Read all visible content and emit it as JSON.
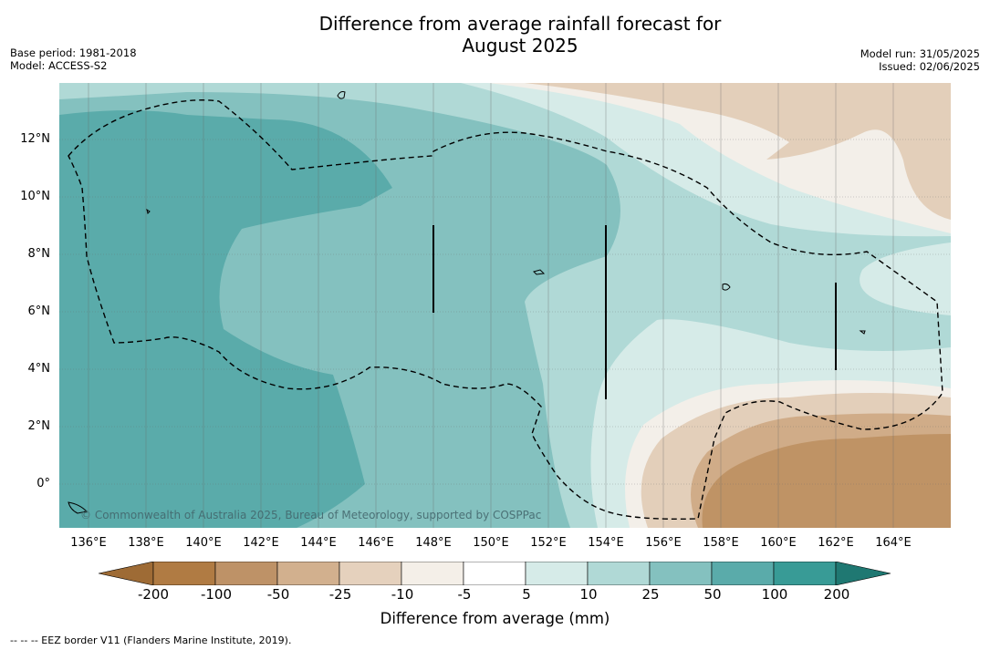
{
  "title": {
    "line1": "Difference from average rainfall forecast for",
    "line2": "August 2025"
  },
  "meta_left": {
    "base_period": "Base period: 1981-2018",
    "model": "Model: ACCESS-S2"
  },
  "meta_right": {
    "model_run": "Model run: 31/05/2025",
    "issued": "Issued: 02/06/2025"
  },
  "map": {
    "lat_labels": [
      "12°N",
      "10°N",
      "8°N",
      "6°N",
      "4°N",
      "2°N",
      "0°"
    ],
    "lon_labels": [
      "136°E",
      "138°E",
      "140°E",
      "142°E",
      "144°E",
      "146°E",
      "148°E",
      "150°E",
      "152°E",
      "154°E",
      "156°E",
      "158°E",
      "160°E",
      "162°E",
      "164°E"
    ],
    "copyright": "© Commonwealth of Australia 2025, Bureau of Meteorology, supported by COSPPac",
    "colors": {
      "water_dark": "#5aabaa",
      "water_mid": "#84c1bf",
      "water_light": "#b0d9d6",
      "water_pale": "#d6ebe8",
      "dry_pale": "#f3efe9",
      "dry_light": "#e3cfba",
      "dry_mid": "#d0ac88",
      "dry_dark": "#bf9365"
    }
  },
  "colorbar": {
    "labels": [
      "-200",
      "-100",
      "-50",
      "-25",
      "-10",
      "-5",
      "5",
      "10",
      "25",
      "50",
      "100",
      "200"
    ],
    "colors": [
      "#9e6b35",
      "#b07b43",
      "#be9267",
      "#d2b08e",
      "#e5d1bd",
      "#f4efe8",
      "#ffffff",
      "#d6ebe8",
      "#b0d9d6",
      "#84c1bf",
      "#5aabaa",
      "#389b96",
      "#1f7872"
    ],
    "title": "Difference from average (mm)"
  },
  "footnote": "--  --  -- EEZ border V11 (Flanders Marine Institute, 2019)."
}
